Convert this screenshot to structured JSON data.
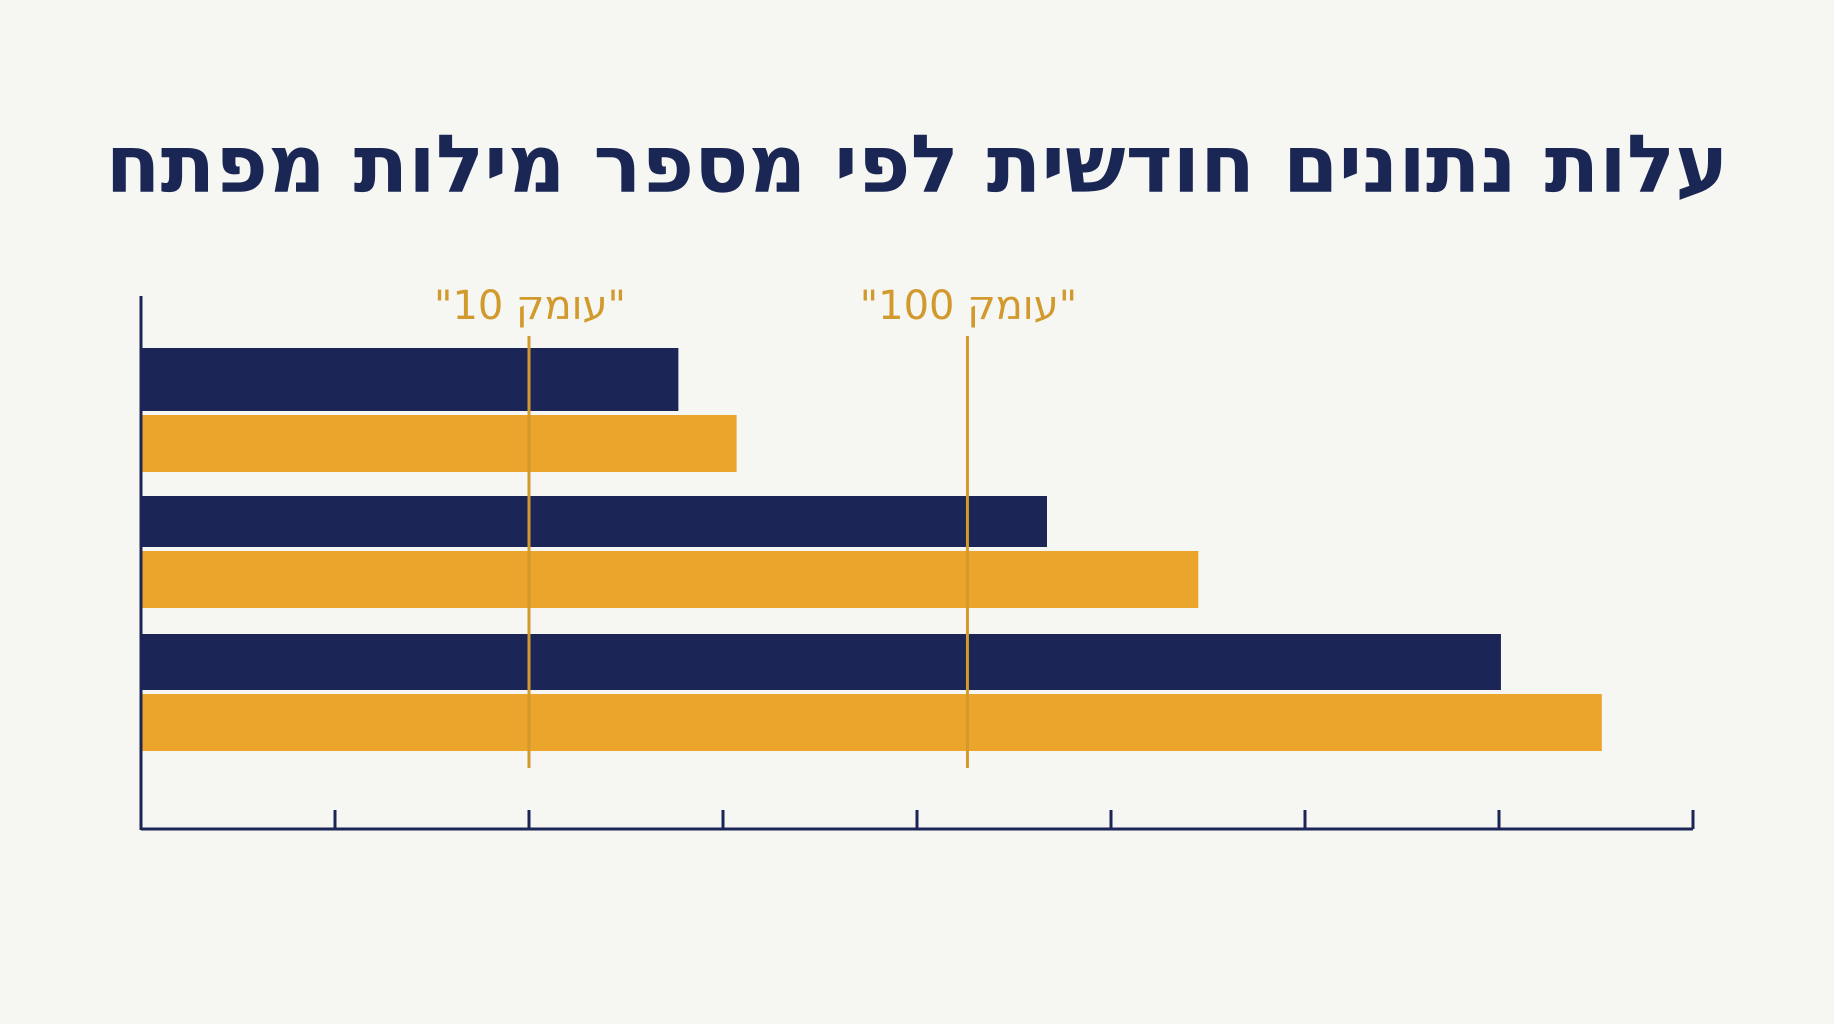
{
  "chart_data": {
    "type": "bar",
    "orientation": "horizontal",
    "title": "עלות נתונים חודשית לפי מספר מילות מפתח",
    "xlabel": "",
    "ylabel": "",
    "xlim": [
      0,
      8
    ],
    "x_ticks": [
      0,
      1,
      2,
      3,
      4,
      5,
      6,
      7,
      8
    ],
    "x_tick_labels_shown": false,
    "categories": [
      "",
      "",
      ""
    ],
    "series": [
      {
        "color": "#1b2656",
        "values": [
          2.77,
          4.67,
          7.01
        ]
      },
      {
        "color": "#eba42c",
        "values": [
          3.07,
          5.45,
          7.53
        ]
      }
    ],
    "reference_lines": [
      {
        "label": "\"עומק 10\"",
        "x": 2.0,
        "color": "#d29a2c"
      },
      {
        "label": "\"עומק 100\"",
        "x": 4.26,
        "color": "#d29a2c"
      }
    ],
    "grid": false,
    "legend": "none"
  }
}
